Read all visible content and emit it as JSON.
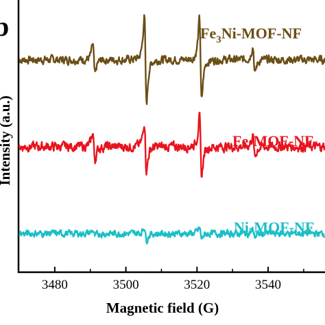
{
  "chart_data": {
    "type": "line",
    "panel_label": "b",
    "xlabel": "Magnetic field (G)",
    "ylabel": "Intensity (a.u.)",
    "xlim": [
      3470,
      3556
    ],
    "xticks": [
      "3480",
      "3500",
      "3520",
      "3540"
    ],
    "grid": false,
    "legend": "labels beside each trace, right side",
    "series": [
      {
        "name": "Fe3Ni-MOF-NF",
        "color": "#6B4E16",
        "baseline": 0.78,
        "noise": 0.012,
        "peaks": [
          {
            "x": 3491,
            "amp": 0.055
          },
          {
            "x": 3505.5,
            "amp": 0.16
          },
          {
            "x": 3521,
            "amp": 0.15
          },
          {
            "x": 3536,
            "amp": 0.05
          }
        ]
      },
      {
        "name": "Fe-MOF-NF",
        "color": "#E8141E",
        "baseline": 0.46,
        "noise": 0.014,
        "peaks": [
          {
            "x": 3491,
            "amp": 0.05
          },
          {
            "x": 3505.5,
            "amp": 0.09
          },
          {
            "x": 3521,
            "amp": 0.11
          },
          {
            "x": 3536,
            "amp": 0.04
          }
        ]
      },
      {
        "name": "Ni-MOF-NF",
        "color": "#1ABFC6",
        "baseline": 0.14,
        "noise": 0.01,
        "peaks": [
          {
            "x": 3491,
            "amp": 0.012
          },
          {
            "x": 3505.5,
            "amp": 0.025
          },
          {
            "x": 3521,
            "amp": 0.02
          },
          {
            "x": 3536,
            "amp": 0.012
          }
        ]
      }
    ]
  },
  "labels": {
    "fe3ni_prefix": "Fe",
    "fe3ni_sub": "3",
    "fe3ni_suffix": "Ni-MOF-NF",
    "fe": "Fe-MOF-NF",
    "ni": "Ni-MOF-NF"
  }
}
